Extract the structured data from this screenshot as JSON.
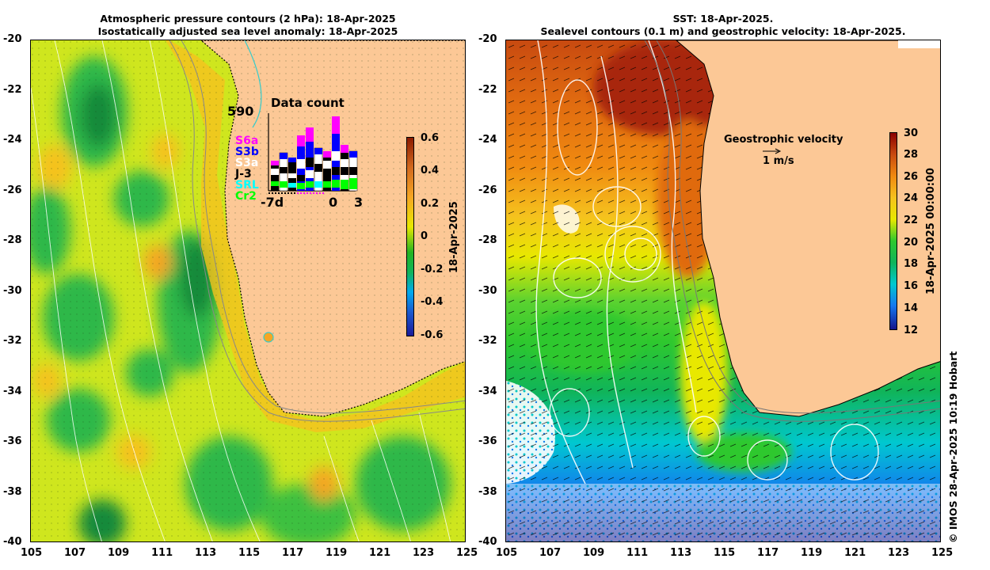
{
  "left_panel": {
    "title_line1": "Atmospheric pressure contours (2 hPa): 18-Apr-2025",
    "title_line2": "Isostatically adjusted sea level anomaly: 18-Apr-2025",
    "colorbar": {
      "ticks": [
        "0.6",
        "0.4",
        "0.2",
        "0",
        "-0.2",
        "-0.4",
        "-0.6"
      ],
      "tick_values": [
        0.6,
        0.4,
        0.2,
        0,
        -0.2,
        -0.4,
        -0.6
      ],
      "label": "18-Apr-2025",
      "colors": [
        "#8b1a00",
        "#d2691e",
        "#f5a623",
        "#e8e800",
        "#22b422",
        "#00aaee",
        "#1a1a9a"
      ]
    },
    "inset": {
      "title": "Data count",
      "max_label": "590",
      "x_labels": [
        "-7d",
        "0",
        "3"
      ],
      "satellites": [
        {
          "name": "S6a",
          "color": "#ff00ff"
        },
        {
          "name": "S3b",
          "color": "#0000ff"
        },
        {
          "name": "S3a",
          "color": "#ffffff"
        },
        {
          "name": "J-3",
          "color": "#000000"
        },
        {
          "name": "SRL",
          "color": "#00ffff"
        },
        {
          "name": "Cr2",
          "color": "#00ff00"
        }
      ]
    }
  },
  "right_panel": {
    "title_line1": "SST: 18-Apr-2025.",
    "title_line2": "Sealevel contours (0.1 m) and geostrophic velocity: 18-Apr-2025.",
    "velocity_title": "Geostrophic velocity",
    "velocity_scale": "1 m/s",
    "colorbar": {
      "ticks": [
        "30",
        "28",
        "26",
        "24",
        "22",
        "20",
        "18",
        "16",
        "14",
        "12"
      ],
      "tick_values": [
        30,
        28,
        26,
        24,
        22,
        20,
        18,
        16,
        14,
        12
      ],
      "label": "18-Apr-2025 00:00:00",
      "colors": [
        "#8b0000",
        "#c84a10",
        "#f08a10",
        "#f5c21e",
        "#e8e800",
        "#2ec82e",
        "#10b45a",
        "#00c8d0",
        "#1478f0",
        "#14148c"
      ]
    },
    "credit": "© IMOS 28-Apr-2025 10:19 Hobart"
  },
  "axes": {
    "x_ticks": [
      "105",
      "107",
      "109",
      "111",
      "113",
      "115",
      "117",
      "119",
      "121",
      "123",
      "125"
    ],
    "y_ticks": [
      "-20",
      "-22",
      "-24",
      "-26",
      "-28",
      "-30",
      "-32",
      "-34",
      "-36",
      "-38",
      "-40"
    ]
  },
  "colors": {
    "land": "#fcc896",
    "frame": "#000000"
  }
}
